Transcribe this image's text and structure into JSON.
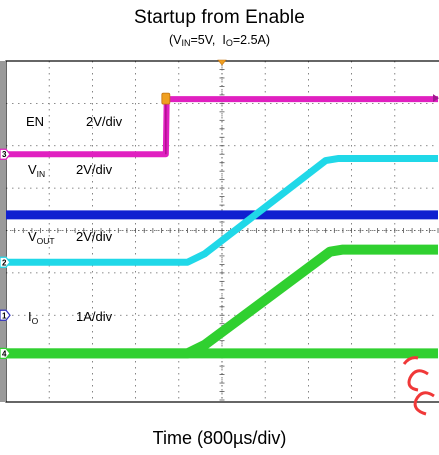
{
  "title": "Startup from Enable",
  "subtitle": {
    "vin_symbol": "V",
    "vin_sub": "IN",
    "vin_value": "=5V,",
    "io_symbol": "I",
    "io_sub": "O",
    "io_value": "=2.5A)"
  },
  "xlabel": "Time (800µs/div)",
  "chart_data": {
    "type": "line",
    "title": "Startup from Enable",
    "xlabel": "Time (800µs/div)",
    "x_unit": "div",
    "x_range": [
      0,
      10
    ],
    "y_range_div": [
      -4,
      4
    ],
    "grid": true,
    "channels": [
      {
        "id": "3",
        "label": "EN",
        "label_sub": "",
        "scale": "2V/div",
        "color": "#e020c0",
        "ground_div": 1.8,
        "ref_label": "3",
        "x": [
          0,
          3.7,
          3.72,
          10
        ],
        "y_div": [
          0,
          0,
          1.3,
          1.3
        ]
      },
      {
        "id": "2",
        "label": "V",
        "label_sub": "IN",
        "scale": "2V/div",
        "color": "#1020d0",
        "ground_div": -0.75,
        "ref_label": "",
        "x": [
          0,
          10
        ],
        "y_div": [
          1.12,
          1.12
        ]
      },
      {
        "id": "2b",
        "label": "",
        "label_sub": "",
        "scale": "",
        "color": "#20d8e8",
        "ground_div": -0.75,
        "ref_label": "2",
        "x": [
          0,
          4.2,
          4.6,
          7.4,
          7.7,
          10
        ],
        "y_div": [
          0,
          0,
          0.2,
          2.4,
          2.45,
          2.45
        ]
      },
      {
        "id": "vout",
        "label": "V",
        "label_sub": "OUT",
        "scale": "2V/div",
        "color": "#30d030",
        "ground_div": -2.9,
        "ref_label": "",
        "x": [
          0,
          4.2,
          4.6,
          7.5,
          7.8,
          10
        ],
        "y_div": [
          0,
          0,
          0.2,
          2.4,
          2.45,
          2.45
        ]
      },
      {
        "id": "4",
        "label": "I",
        "label_sub": "O",
        "scale": "1A/div",
        "color": "#30d030",
        "ground_div": -2.9,
        "ref_label": "4",
        "x": [
          0,
          10
        ],
        "y_div": [
          0,
          0
        ]
      }
    ],
    "ref_markers": [
      {
        "label": "1",
        "level_div": -2.0,
        "color": "#3030c0"
      }
    ],
    "trigger_label": "T"
  }
}
